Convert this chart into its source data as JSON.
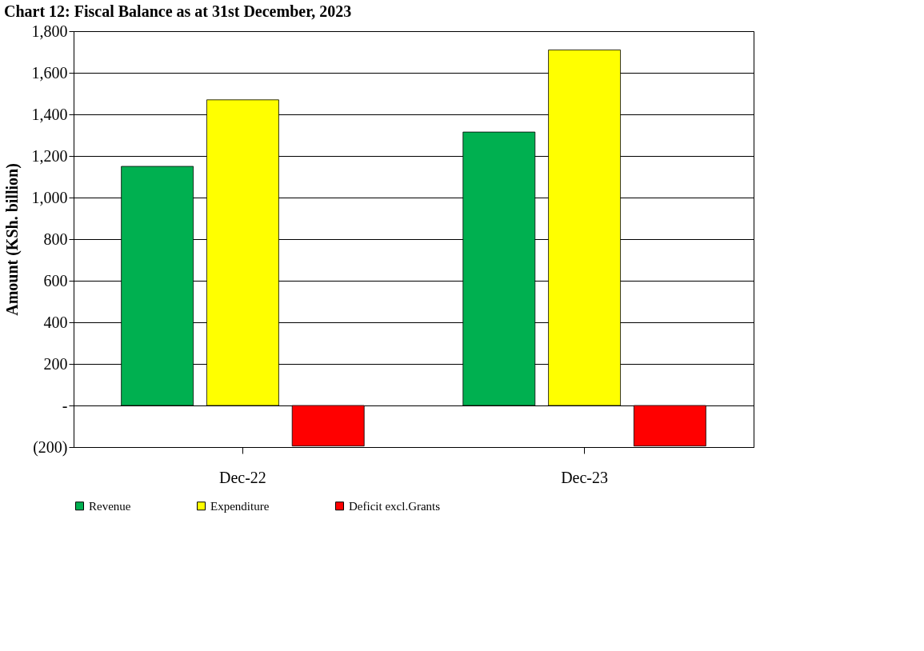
{
  "chart_data": {
    "type": "bar",
    "title": "Chart 12: Fiscal Balance as at 31st December, 2023",
    "ylabel": "Amount  (KSh. billion)",
    "categories": [
      "Dec-22",
      "Dec-23"
    ],
    "series": [
      {
        "name": "Revenue",
        "color": "#00b050",
        "values": [
          1150,
          1315
        ]
      },
      {
        "name": "Expenditure",
        "color": "#ffff00",
        "values": [
          1470,
          1710
        ]
      },
      {
        "name": "Deficit excl.Grants",
        "color": "#ff0000",
        "values": [
          -195,
          -195
        ]
      }
    ],
    "ylim": [
      -200,
      1800
    ],
    "yticks": [
      {
        "value": -200,
        "label": "(200)"
      },
      {
        "value": 0,
        "label": "-"
      },
      200,
      400,
      600,
      800,
      {
        "value": 1000,
        "label": "1,000"
      },
      {
        "value": 1200,
        "label": "1,200"
      },
      {
        "value": 1400,
        "label": "1,400"
      },
      {
        "value": 1600,
        "label": "1,600"
      },
      {
        "value": 1800,
        "label": "1,800"
      }
    ],
    "grid": "y",
    "legend": "bottom"
  }
}
